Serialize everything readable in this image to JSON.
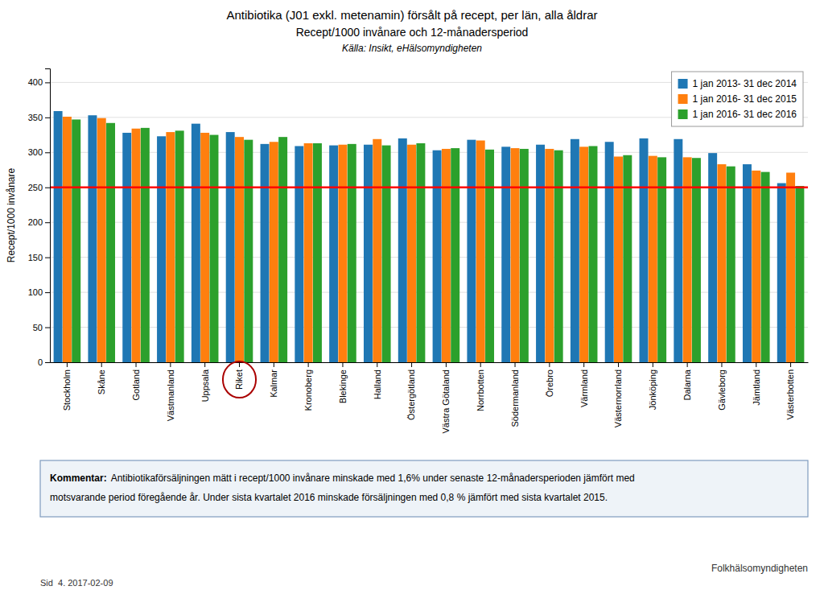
{
  "chart_data": {
    "type": "bar",
    "title": "Antibiotika (J01 exkl. metenamin) försålt på recept, per län, alla åldrar",
    "subtitle": "Recept/1000 invånare och 12-månadersperiod",
    "source": "Källa: Insikt, eHälsomyndigheten",
    "ylabel": "Recept/1000 invånare",
    "categories": [
      "Stockholm",
      "Skåne",
      "Gotland",
      "Västmanland",
      "Uppsala",
      "Riket",
      "Kalmar",
      "Kronoberg",
      "Blekinge",
      "Halland",
      "Östergötland",
      "Västra Götaland",
      "Norrbotten",
      "Södermanland",
      "Örebro",
      "Värmland",
      "Västernorrland",
      "Jönköping",
      "Dalarna",
      "Gävleborg",
      "Jämtland",
      "Västerbotten"
    ],
    "series": [
      {
        "name": "1 jan 2013- 31 dec 2014",
        "values": [
          359,
          353,
          328,
          323,
          341,
          329,
          312,
          309,
          310,
          311,
          320,
          303,
          318,
          308,
          311,
          319,
          315,
          320,
          319,
          299,
          283,
          256
        ]
      },
      {
        "name": "1 jan 2016- 31 dec 2015",
        "values": [
          351,
          349,
          334,
          329,
          328,
          322,
          315,
          313,
          311,
          319,
          311,
          305,
          317,
          306,
          305,
          308,
          294,
          295,
          293,
          283,
          274,
          271
        ]
      },
      {
        "name": "1 jan 2016- 31 dec 2016",
        "values": [
          347,
          342,
          335,
          331,
          325,
          318,
          322,
          313,
          312,
          310,
          313,
          306,
          304,
          305,
          303,
          309,
          296,
          293,
          292,
          280,
          272,
          252
        ]
      }
    ],
    "ylim": [
      0,
      420
    ],
    "yticks": [
      0,
      50,
      100,
      150,
      200,
      250,
      300,
      350,
      400
    ],
    "grid": true,
    "legend": "upper right",
    "reference_line": {
      "value": 250,
      "color": "red"
    },
    "highlight": {
      "category": "Riket",
      "color": "#AA0000"
    },
    "comment": {
      "label": "Kommentar:",
      "lines": [
        "Antibiotikaförsäljningen mätt i recept/1000 invånare minskade med 1,6% under senaste 12-månadersperioden jämfört med",
        "motsvarande period föregående år. Under sista kvartalet 2016 minskade försäljningen med 0,8 % jämfört med sista kvartalet 2015."
      ]
    },
    "footer": "Sid  4. 2017-02-09",
    "publisher": "Folkhälsomyndigheten"
  }
}
